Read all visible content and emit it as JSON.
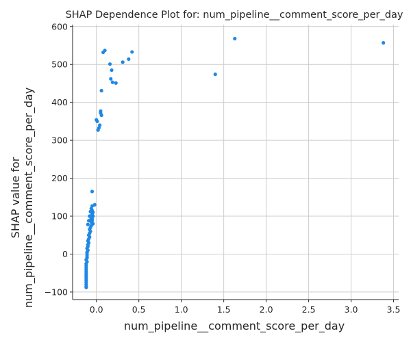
{
  "chart_data": {
    "type": "scatter",
    "title": "SHAP Dependence Plot for: num_pipeline__comment_score_per_day",
    "xlabel": "num_pipeline__comment_score_per_day",
    "ylabel_lines": [
      "SHAP value for",
      "num_pipeline__comment_score_per_day"
    ],
    "xlim": [
      -0.28,
      3.56
    ],
    "ylim": [
      -120,
      605
    ],
    "xticks": [
      0.0,
      0.5,
      1.0,
      1.5,
      2.0,
      2.5,
      3.0,
      3.5
    ],
    "xtick_labels": [
      "0.0",
      "0.5",
      "1.0",
      "1.5",
      "2.0",
      "2.5",
      "3.0",
      "3.5"
    ],
    "yticks": [
      -100,
      0,
      100,
      200,
      300,
      400,
      500,
      600
    ],
    "ytick_labels": [
      "−100",
      "0",
      "100",
      "200",
      "300",
      "400",
      "500",
      "600"
    ],
    "grid": true,
    "point_color": "#1e88e5",
    "points": [
      [
        3.38,
        557
      ],
      [
        1.63,
        568
      ],
      [
        1.4,
        474
      ],
      [
        0.42,
        533
      ],
      [
        0.38,
        514
      ],
      [
        0.31,
        506
      ],
      [
        0.23,
        451
      ],
      [
        0.19,
        453
      ],
      [
        0.17,
        462
      ],
      [
        0.18,
        485
      ],
      [
        0.16,
        501
      ],
      [
        0.1,
        537
      ],
      [
        0.08,
        532
      ],
      [
        0.06,
        431
      ],
      [
        0.06,
        366
      ],
      [
        0.05,
        372
      ],
      [
        0.05,
        377
      ],
      [
        0.04,
        340
      ],
      [
        0.03,
        333
      ],
      [
        0.02,
        327
      ],
      [
        0.01,
        350
      ],
      [
        0.0,
        354
      ],
      [
        -0.05,
        165
      ],
      [
        -0.02,
        130
      ],
      [
        -0.05,
        127
      ],
      [
        -0.05,
        115
      ],
      [
        -0.04,
        110
      ],
      [
        -0.05,
        105
      ],
      [
        -0.04,
        100
      ],
      [
        -0.06,
        97
      ],
      [
        -0.05,
        93
      ],
      [
        -0.05,
        88
      ],
      [
        -0.07,
        90
      ],
      [
        -0.04,
        80
      ],
      [
        -0.06,
        84
      ],
      [
        -0.06,
        75
      ],
      [
        -0.07,
        70
      ],
      [
        -0.08,
        65
      ],
      [
        -0.07,
        60
      ],
      [
        -0.08,
        55
      ],
      [
        -0.09,
        50
      ],
      [
        -0.08,
        45
      ],
      [
        -0.09,
        40
      ],
      [
        -0.1,
        35
      ],
      [
        -0.09,
        30
      ],
      [
        -0.1,
        25
      ],
      [
        -0.1,
        20
      ],
      [
        -0.11,
        15
      ],
      [
        -0.1,
        10
      ],
      [
        -0.11,
        5
      ],
      [
        -0.11,
        0
      ],
      [
        -0.11,
        -5
      ],
      [
        -0.11,
        -10
      ],
      [
        -0.12,
        -15
      ],
      [
        -0.11,
        -20
      ],
      [
        -0.12,
        -25
      ],
      [
        -0.12,
        -30
      ],
      [
        -0.12,
        -35
      ],
      [
        -0.12,
        -40
      ],
      [
        -0.12,
        -45
      ],
      [
        -0.12,
        -50
      ],
      [
        -0.12,
        -55
      ],
      [
        -0.12,
        -60
      ],
      [
        -0.12,
        -65
      ],
      [
        -0.12,
        -70
      ],
      [
        -0.12,
        -75
      ],
      [
        -0.12,
        -80
      ],
      [
        -0.12,
        -85
      ],
      [
        -0.12,
        -88
      ],
      [
        -0.06,
        120
      ],
      [
        -0.07,
        112
      ],
      [
        -0.08,
        100
      ],
      [
        -0.09,
        88
      ],
      [
        -0.1,
        78
      ]
    ]
  }
}
